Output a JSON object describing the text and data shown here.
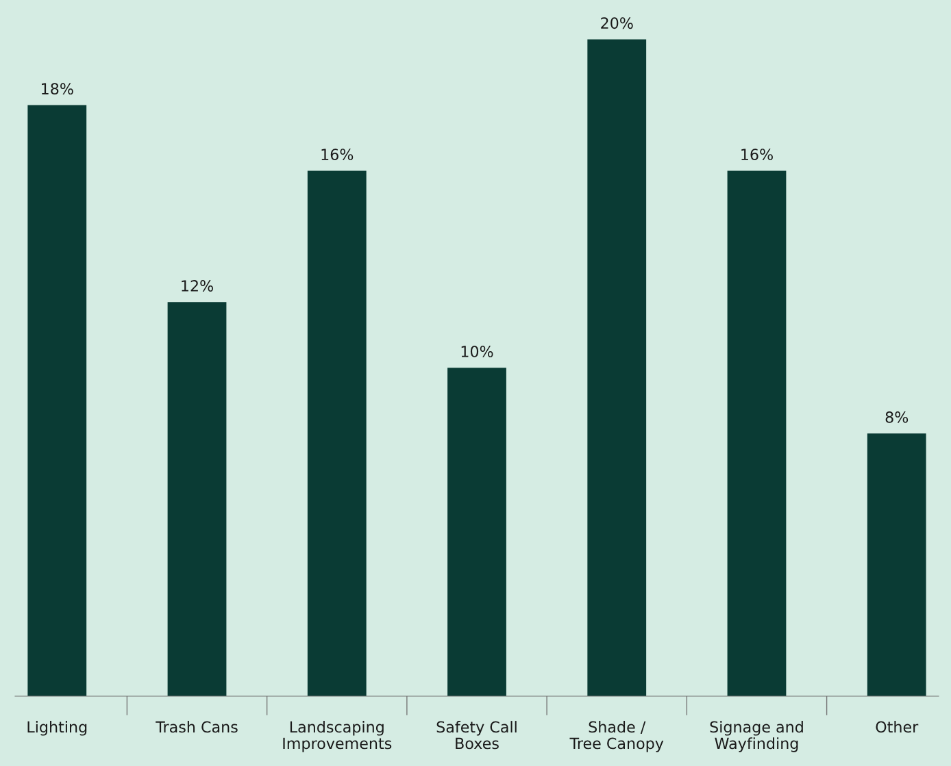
{
  "chart_data": {
    "type": "bar",
    "categories": [
      "Lighting",
      "Trash Cans",
      "Landscaping\nImprovements",
      "Safety Call\nBoxes",
      "Shade /\nTree Canopy",
      "Signage and\nWayfinding",
      "Other"
    ],
    "values": [
      18,
      12,
      16,
      10,
      20,
      16,
      8
    ],
    "value_labels": [
      "18%",
      "12%",
      "16%",
      "10%",
      "20%",
      "16%",
      "8%"
    ],
    "color": "#0a3b34",
    "grid": false,
    "legend": false
  }
}
